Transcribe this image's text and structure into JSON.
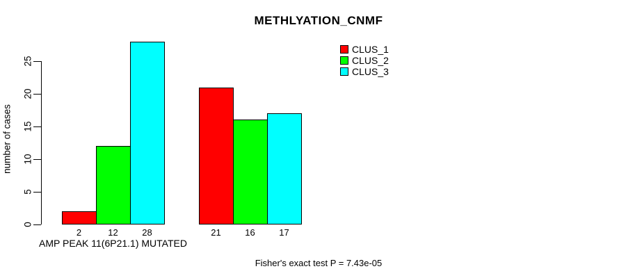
{
  "chart_data": {
    "type": "bar",
    "title": "METHLYATION_CNMF",
    "ylabel": "number of cases",
    "xlabel": "",
    "ylim": [
      0,
      28
    ],
    "yticks": [
      0,
      5,
      10,
      15,
      20,
      25
    ],
    "grid": false,
    "legend_position": "top-right",
    "series": [
      {
        "name": "CLUS_1",
        "color": "#FF0000"
      },
      {
        "name": "CLUS_2",
        "color": "#00FF00"
      },
      {
        "name": "CLUS_3",
        "color": "#00FFFF"
      }
    ],
    "groups": [
      {
        "label": "AMP PEAK 11(6P21.1) MUTATED",
        "values": [
          2,
          12,
          28
        ]
      },
      {
        "label": "",
        "values": [
          21,
          16,
          17
        ]
      }
    ],
    "annotation": "Fisher's exact test P = 7.43e-05"
  }
}
